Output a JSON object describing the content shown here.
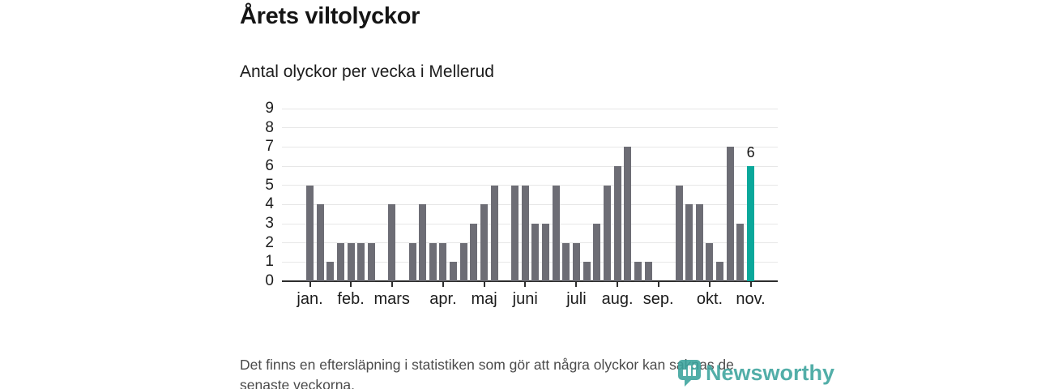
{
  "header": {
    "title": "Årets viltolyckor",
    "subtitle": "Antal olyckor per vecka i Mellerud"
  },
  "chart_data": {
    "type": "bar",
    "title": "Årets viltolyckor",
    "subtitle": "Antal olyckor per vecka i Mellerud",
    "x_unit": "vecka",
    "values": [
      5,
      4,
      1,
      2,
      2,
      2,
      2,
      0,
      4,
      0,
      2,
      4,
      2,
      2,
      1,
      2,
      3,
      4,
      5,
      0,
      5,
      5,
      3,
      3,
      5,
      2,
      2,
      1,
      3,
      5,
      6,
      7,
      1,
      1,
      0,
      0,
      5,
      4,
      4,
      2,
      1,
      7,
      3,
      6
    ],
    "highlight_index": 43,
    "highlight_value_label": "6",
    "month_ticks": [
      {
        "label": "jan.",
        "week_index": 0
      },
      {
        "label": "feb.",
        "week_index": 4
      },
      {
        "label": "mars",
        "week_index": 8
      },
      {
        "label": "apr.",
        "week_index": 13
      },
      {
        "label": "maj",
        "week_index": 17
      },
      {
        "label": "juni",
        "week_index": 21
      },
      {
        "label": "juli",
        "week_index": 26
      },
      {
        "label": "aug.",
        "week_index": 30
      },
      {
        "label": "sep.",
        "week_index": 34
      },
      {
        "label": "okt.",
        "week_index": 39
      },
      {
        "label": "nov.",
        "week_index": 43
      }
    ],
    "ylim": [
      0,
      9
    ],
    "yticks": [
      0,
      1,
      2,
      3,
      4,
      5,
      6,
      7,
      8,
      9
    ],
    "grid": true,
    "colors": {
      "bar": "#6d6d75",
      "highlight": "#0aa89b"
    }
  },
  "footer": {
    "note": "Det finns en eftersläpning i statistiken som gör att några olyckor kan saknas de senaste veckorna.",
    "logo_text": "Newsworthy",
    "logo_color": "#3ba39d"
  }
}
